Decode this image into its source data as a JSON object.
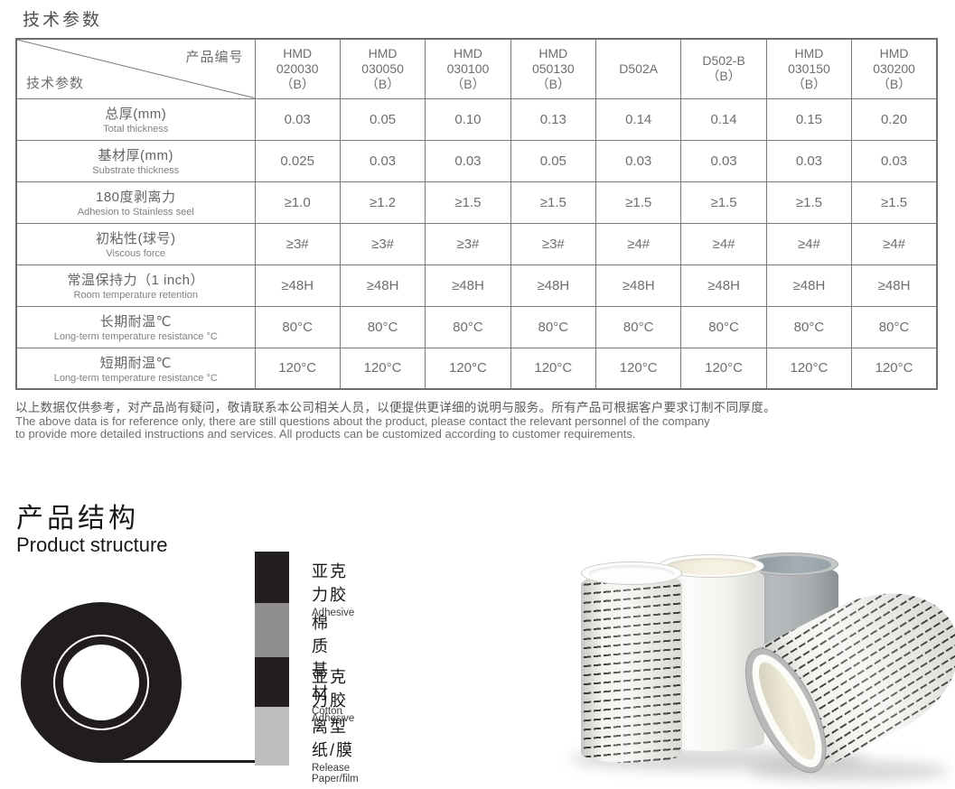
{
  "page": {
    "title": "技术参数"
  },
  "table": {
    "corner": {
      "top_right": "产品编号",
      "bottom_left": "技术参数"
    },
    "columns": [
      {
        "lines": [
          "HMD",
          "020030",
          "（B）"
        ]
      },
      {
        "lines": [
          "HMD",
          "030050",
          "（B）"
        ]
      },
      {
        "lines": [
          "HMD",
          "030100",
          "（B）"
        ]
      },
      {
        "lines": [
          "HMD",
          "050130",
          "（B）"
        ]
      },
      {
        "lines": [
          "D502A"
        ]
      },
      {
        "lines": [
          "D502-B",
          "（B）"
        ]
      },
      {
        "lines": [
          "HMD",
          "030150",
          "（B）"
        ]
      },
      {
        "lines": [
          "HMD",
          "030200",
          "（B）"
        ]
      }
    ],
    "rows": [
      {
        "label_zh": "总厚(mm)",
        "label_en": "Total thickness",
        "values": [
          "0.03",
          "0.05",
          "0.10",
          "0.13",
          "0.14",
          "0.14",
          "0.15",
          "0.20"
        ]
      },
      {
        "label_zh": "基材厚(mm)",
        "label_en": "Substrate thickness",
        "values": [
          "0.025",
          "0.03",
          "0.03",
          "0.05",
          "0.03",
          "0.03",
          "0.03",
          "0.03"
        ]
      },
      {
        "label_zh": "180度剥离力",
        "label_en": "Adhesion to Stainless seel",
        "values": [
          "≥1.0",
          "≥1.2",
          "≥1.5",
          "≥1.5",
          "≥1.5",
          "≥1.5",
          "≥1.5",
          "≥1.5"
        ]
      },
      {
        "label_zh": "初粘性(球号)",
        "label_en": "Viscous force",
        "values": [
          "≥3#",
          "≥3#",
          "≥3#",
          "≥3#",
          "≥4#",
          "≥4#",
          "≥4#",
          "≥4#"
        ]
      },
      {
        "label_zh": "常温保持力（1 inch）",
        "label_en": "Room temperature retention",
        "values": [
          "≥48H",
          "≥48H",
          "≥48H",
          "≥48H",
          "≥48H",
          "≥48H",
          "≥48H",
          "≥48H"
        ]
      },
      {
        "label_zh": "长期耐温℃",
        "label_en": "Long-term temperature resistance °C",
        "values": [
          "80°C",
          "80°C",
          "80°C",
          "80°C",
          "80°C",
          "80°C",
          "80°C",
          "80°C"
        ]
      },
      {
        "label_zh": "短期耐温℃",
        "label_en": "Long-term temperature resistance °C",
        "values": [
          "120°C",
          "120°C",
          "120°C",
          "120°C",
          "120°C",
          "120°C",
          "120°C",
          "120°C"
        ]
      }
    ]
  },
  "notes": {
    "zh": "以上数据仅供参考，对产品尚有疑问，敬请联系本公司相关人员，以便提供更详细的说明与服务。所有产品可根据客户要求订制不同厚度。",
    "en_line1": "The above data is for reference only, there are still questions about the product, please contact the relevant personnel of the company",
    "en_line2": "to provide more detailed instructions and services. All products can be customized according to customer requirements."
  },
  "structure": {
    "title_zh": "产品结构",
    "title_en": "Product structure",
    "layers": [
      {
        "zh": "亚克力胶",
        "en": "Adhesive",
        "color": "#231f20"
      },
      {
        "zh": "棉质基材",
        "en": "Cotton",
        "color": "#8f8d8e"
      },
      {
        "zh": "亚克力胶",
        "en": "Adhesive",
        "color": "#231f20"
      },
      {
        "zh": "离型纸/膜",
        "en": "Release Paper/film",
        "color": "#bdbdbf"
      }
    ],
    "diagram_colors": {
      "roll": "#211d1e",
      "strip": "#211d1e"
    }
  }
}
